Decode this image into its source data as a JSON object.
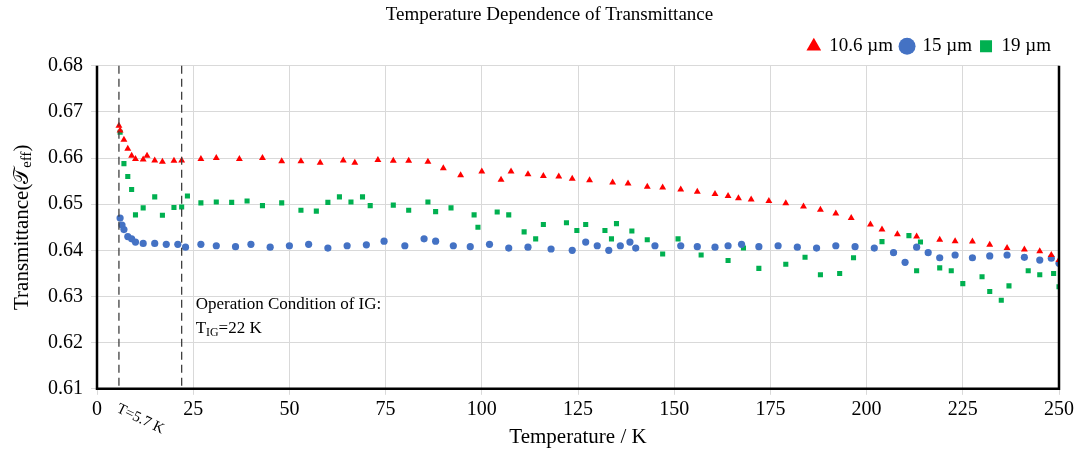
{
  "chart_data": {
    "type": "scatter",
    "title": "Temperature Dependence of Transmittance",
    "xlabel": "Temperature / K",
    "ylabel": "Transmittance(𝒯$_{eff}$)",
    "xlim": [
      0,
      250
    ],
    "xticks": [
      0,
      25,
      50,
      75,
      100,
      125,
      150,
      175,
      200,
      225,
      250
    ],
    "ylim": [
      0.61,
      0.68
    ],
    "yticks": [
      0.61,
      0.62,
      0.63,
      0.64,
      0.65,
      0.66,
      0.67,
      0.68
    ],
    "grid": true,
    "legend": "top right",
    "ref_lines": [
      {
        "axis": "x",
        "value": 5.7,
        "label": "T=5.7 K",
        "line_style": "dashed",
        "color": "#404040"
      },
      {
        "axis": "x",
        "value": 22,
        "label": "T$_{IG}$=22 K",
        "line_style": "dashed",
        "color": "#404040"
      }
    ],
    "annotations": [
      "Operation Condition of IG:"
    ],
    "series": [
      {
        "name": "10.6 µm",
        "color": "#ff0000",
        "marker": "triangle",
        "x": [
          5.7,
          6,
          7,
          8,
          9,
          10,
          12,
          13,
          15,
          17,
          20,
          22,
          27,
          31,
          37,
          43,
          48,
          53,
          58,
          64,
          67,
          73,
          77,
          81,
          86,
          90,
          94.5,
          100,
          105,
          107.6,
          112,
          116,
          120,
          123.5,
          128,
          134,
          138,
          143,
          147,
          151.7,
          156,
          160.6,
          164,
          166.7,
          170,
          174.6,
          179,
          183.6,
          188,
          192,
          196,
          201,
          204,
          208,
          213,
          219,
          223,
          227.5,
          232,
          236.5,
          241,
          245,
          248,
          250
        ],
        "values": [
          0.667,
          0.666,
          0.664,
          0.662,
          0.6605,
          0.6598,
          0.6597,
          0.6605,
          0.6595,
          0.6592,
          0.6594,
          0.6595,
          0.6598,
          0.66,
          0.6598,
          0.66,
          0.6593,
          0.6593,
          0.659,
          0.6595,
          0.659,
          0.6596,
          0.6594,
          0.6594,
          0.6592,
          0.6578,
          0.6563,
          0.6571,
          0.6553,
          0.6571,
          0.6565,
          0.6561,
          0.656,
          0.6555,
          0.6552,
          0.6547,
          0.6545,
          0.6538,
          0.6536,
          0.6532,
          0.6527,
          0.6522,
          0.6518,
          0.6513,
          0.651,
          0.6507,
          0.6502,
          0.6495,
          0.6488,
          0.648,
          0.647,
          0.6456,
          0.6445,
          0.6435,
          0.643,
          0.6423,
          0.642,
          0.6419,
          0.6412,
          0.6405,
          0.6402,
          0.6398,
          0.639,
          0.6379
        ]
      },
      {
        "name": "15 µm",
        "color": "#4472c4",
        "marker": "circle",
        "x": [
          6,
          6.5,
          7,
          8,
          9,
          10,
          12,
          15,
          18,
          21,
          23,
          27,
          31,
          36,
          40,
          45,
          50,
          55,
          60,
          65,
          70,
          74.6,
          80,
          85,
          88,
          92.6,
          97,
          102,
          107,
          112,
          118,
          123.5,
          127,
          130,
          133,
          136,
          138.5,
          140,
          145,
          151.7,
          156,
          160.6,
          164,
          167.5,
          172,
          177,
          182,
          187,
          192,
          197,
          202,
          207,
          210,
          213,
          216,
          219,
          223,
          227.5,
          232,
          236.5,
          241,
          245,
          248,
          250
        ],
        "values": [
          0.647,
          0.6455,
          0.6445,
          0.643,
          0.6425,
          0.6418,
          0.6415,
          0.6415,
          0.6413,
          0.6413,
          0.6407,
          0.6413,
          0.641,
          0.6408,
          0.6413,
          0.6407,
          0.641,
          0.6413,
          0.6405,
          0.641,
          0.6412,
          0.642,
          0.641,
          0.6425,
          0.642,
          0.641,
          0.6408,
          0.6413,
          0.6405,
          0.6407,
          0.6403,
          0.64,
          0.6418,
          0.641,
          0.64,
          0.641,
          0.6418,
          0.6405,
          0.641,
          0.641,
          0.6408,
          0.6407,
          0.641,
          0.6413,
          0.6408,
          0.641,
          0.6407,
          0.6405,
          0.641,
          0.6408,
          0.6405,
          0.6395,
          0.6374,
          0.6407,
          0.6395,
          0.6384,
          0.639,
          0.6384,
          0.6388,
          0.639,
          0.6385,
          0.6379,
          0.6383,
          0.6372
        ]
      },
      {
        "name": "19 µm",
        "color": "#00b050",
        "marker": "square",
        "x": [
          6,
          7,
          8,
          9,
          10,
          12,
          15,
          17,
          20,
          22,
          23.5,
          27,
          31,
          35,
          39,
          43,
          48,
          53,
          57,
          60,
          63,
          66,
          69,
          71,
          77,
          81,
          86,
          88,
          92,
          98,
          99,
          104,
          107,
          111,
          114,
          116,
          122,
          124.7,
          127,
          132,
          133.7,
          135,
          139,
          143,
          147,
          151,
          157,
          164,
          168,
          172,
          179,
          184,
          188,
          193,
          196.6,
          204,
          211,
          213,
          214,
          219,
          222,
          225,
          230,
          232,
          235,
          237,
          242,
          245,
          248.6,
          250
        ],
        "values": [
          0.6656,
          0.6588,
          0.656,
          0.6532,
          0.6477,
          0.6492,
          0.6516,
          0.6476,
          0.6493,
          0.6494,
          0.6518,
          0.6503,
          0.6505,
          0.6504,
          0.6507,
          0.6497,
          0.6503,
          0.6487,
          0.6485,
          0.6504,
          0.6516,
          0.6505,
          0.6516,
          0.6497,
          0.6498,
          0.6487,
          0.6505,
          0.6484,
          0.6492,
          0.6477,
          0.645,
          0.6483,
          0.6477,
          0.644,
          0.6425,
          0.6456,
          0.646,
          0.6443,
          0.6456,
          0.6443,
          0.6425,
          0.6458,
          0.6442,
          0.6423,
          0.6392,
          0.6425,
          0.639,
          0.6378,
          0.6405,
          0.6361,
          0.637,
          0.6385,
          0.6347,
          0.635,
          0.6384,
          0.6419,
          0.6432,
          0.6356,
          0.6418,
          0.6362,
          0.6356,
          0.6328,
          0.6343,
          0.6311,
          0.6292,
          0.6323,
          0.6356,
          0.6347,
          0.635,
          0.6321
        ]
      }
    ]
  }
}
